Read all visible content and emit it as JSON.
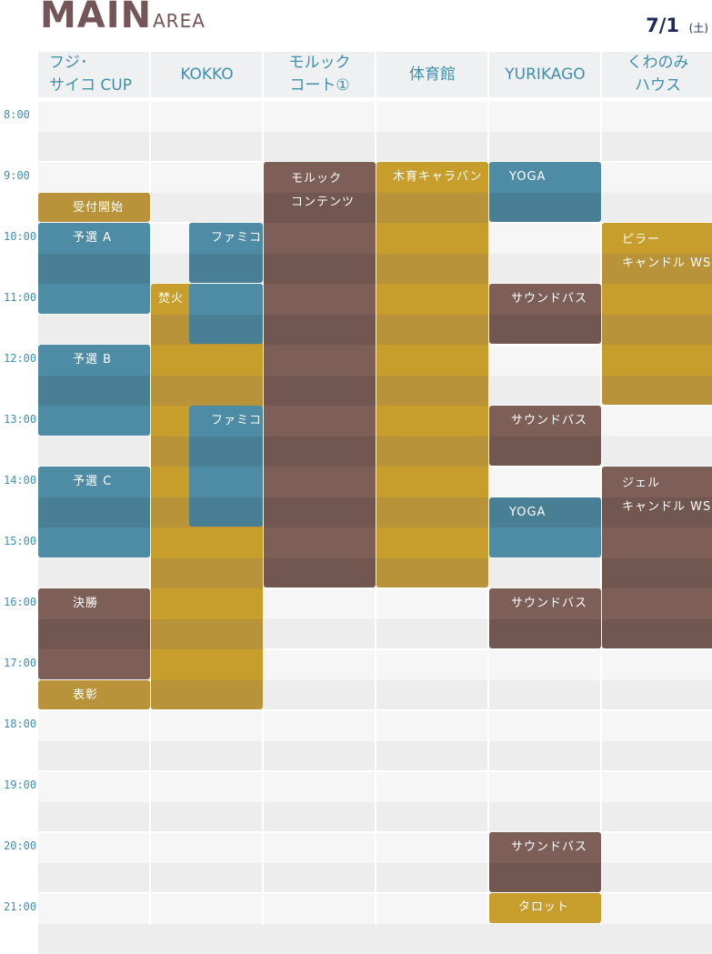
{
  "header": {
    "title": "MAIN",
    "subtitle": "AREA",
    "date": "7/1",
    "weekday": "(土)"
  },
  "columns": [
    {
      "label": "フジ･\nサイコ CUP",
      "align": "left"
    },
    {
      "label": "KOKKO",
      "align": "center"
    },
    {
      "label": "モルック\nコート①",
      "align": "center"
    },
    {
      "label": "体育館",
      "align": "center"
    },
    {
      "label": "YURIKAGO",
      "align": "center"
    },
    {
      "label": "くわのみ\nハウス",
      "align": "center"
    }
  ],
  "times": [
    "8:00",
    "9:00",
    "10:00",
    "11:00",
    "12:00",
    "13:00",
    "14:00",
    "15:00",
    "16:00",
    "17:00",
    "18:00",
    "19:00",
    "20:00",
    "21:00"
  ],
  "colors": {
    "header_bg": "#eef0f1",
    "row_light": "#f5f6f5",
    "row_dark": "#ecedec",
    "blue": "#4e8ca6",
    "blue_dark": "#487f95",
    "gold": "#c79e2b",
    "gold_dark": "#b89339",
    "brown": "#7d5f58",
    "brown_dark": "#725650"
  },
  "events": [
    {
      "col": 0,
      "start": 9.5,
      "end": 10.0,
      "label": "受付開始",
      "color": "gold"
    },
    {
      "col": 0,
      "start": 10.0,
      "end": 11.5,
      "label": "予選 A",
      "color": "blue"
    },
    {
      "col": 0,
      "start": 12.0,
      "end": 13.5,
      "label": "予選 B",
      "color": "blue"
    },
    {
      "col": 0,
      "start": 14.0,
      "end": 15.5,
      "label": "予選 C",
      "color": "blue"
    },
    {
      "col": 0,
      "start": 16.0,
      "end": 17.5,
      "label": "決勝",
      "color": "brown"
    },
    {
      "col": 0,
      "start": 17.5,
      "end": 18.0,
      "label": "表彰",
      "color": "gold"
    },
    {
      "col": 1,
      "start": 11.0,
      "end": 18.0,
      "label": "焚火",
      "color": "gold"
    },
    {
      "col": 1,
      "start": 10.0,
      "end": 11.0,
      "label": "ファミコン",
      "color": "blue",
      "inset": 42
    },
    {
      "col": 1,
      "start": 11.0,
      "end": 12.0,
      "label": "",
      "color": "blue",
      "inset": 42
    },
    {
      "col": 1,
      "start": 13.0,
      "end": 15.0,
      "label": "ファミコン",
      "color": "blue",
      "inset": 42
    },
    {
      "col": 2,
      "start": 9.0,
      "end": 16.0,
      "label": "モルック\nコンテンツ",
      "color": "brown"
    },
    {
      "col": 3,
      "start": 9.0,
      "end": 16.0,
      "label": "木育キャラバン",
      "color": "gold"
    },
    {
      "col": 4,
      "start": 9.0,
      "end": 10.0,
      "label": "YOGA",
      "color": "blue"
    },
    {
      "col": 4,
      "start": 11.0,
      "end": 12.0,
      "label": "サウンドバス",
      "color": "brown"
    },
    {
      "col": 4,
      "start": 13.0,
      "end": 14.0,
      "label": "サウンドバス",
      "color": "brown"
    },
    {
      "col": 4,
      "start": 14.5,
      "end": 15.5,
      "label": "YOGA",
      "color": "blue"
    },
    {
      "col": 4,
      "start": 16.0,
      "end": 17.0,
      "label": "サウンドバス",
      "color": "brown"
    },
    {
      "col": 4,
      "start": 20.0,
      "end": 21.0,
      "label": "サウンドバス",
      "color": "brown"
    },
    {
      "col": 4,
      "start": 21.0,
      "end": 21.5,
      "label": "タロット",
      "color": "gold"
    },
    {
      "col": 5,
      "start": 10.0,
      "end": 13.0,
      "label": "ピラー\nキャンドル WS",
      "color": "gold"
    },
    {
      "col": 5,
      "start": 14.0,
      "end": 17.0,
      "label": "ジェル\nキャンドル WS",
      "color": "brown"
    }
  ]
}
